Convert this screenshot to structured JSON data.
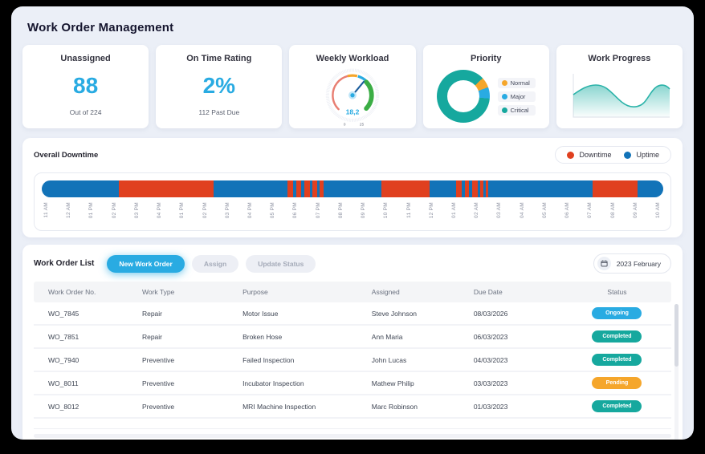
{
  "page": {
    "title": "Work Order Management"
  },
  "kpi_cards": [
    {
      "title": "Unassigned",
      "value": "88",
      "subtitle": "Out of 224",
      "accent_color": "#29ABE2"
    },
    {
      "title": "On Time Rating",
      "value": "2%",
      "subtitle": "112 Past Due",
      "accent_color": "#29ABE2"
    },
    {
      "title": "Weekly Workload",
      "gauge": {
        "value": "18,2",
        "min": "0",
        "max": "25"
      }
    },
    {
      "title": "Priority",
      "legend": [
        {
          "label": "Normal",
          "color": "#F5A62B"
        },
        {
          "label": "Major",
          "color": "#29ABE2"
        },
        {
          "label": "Critical",
          "color": "#16A89E"
        }
      ]
    },
    {
      "title": "Work Progress",
      "accent_color": "#2BB3A9"
    }
  ],
  "downtime": {
    "title": "Overall Downtime",
    "legend": [
      {
        "label": "Downtime",
        "color": "#E0401F"
      },
      {
        "label": "Uptime",
        "color": "#1273B8"
      }
    ],
    "timeline": {
      "labels": [
        "11 AM",
        "12 AM",
        "01 PM",
        "02 PM",
        "03 PM",
        "04 PM",
        "01 PM",
        "02 PM",
        "03 PM",
        "04 PM",
        "05 PM",
        "06 PM",
        "07 PM",
        "08 PM",
        "09 PM",
        "10 PM",
        "11 PM",
        "12 PM",
        "01 AM",
        "02 AM",
        "03 AM",
        "04 AM",
        "05 AM",
        "06 AM",
        "07 AM",
        "08 AM",
        "09 AM",
        "10 AM"
      ],
      "downtime_segments": [
        {
          "start": 12.4,
          "width": 15.2
        },
        {
          "start": 39.5,
          "width": 0.9
        },
        {
          "start": 41.0,
          "width": 0.7
        },
        {
          "start": 42.2,
          "width": 0.9
        },
        {
          "start": 43.6,
          "width": 0.7
        },
        {
          "start": 44.7,
          "width": 0.6
        },
        {
          "start": 54.7,
          "width": 7.7
        },
        {
          "start": 66.7,
          "width": 0.9
        },
        {
          "start": 68.1,
          "width": 0.6
        },
        {
          "start": 69.2,
          "width": 0.9
        },
        {
          "start": 70.5,
          "width": 0.6
        },
        {
          "start": 71.4,
          "width": 0.5
        },
        {
          "start": 88.6,
          "width": 7.3
        }
      ]
    }
  },
  "work_orders": {
    "title": "Work Order List",
    "buttons": {
      "new": "New Work Order",
      "assign": "Assign",
      "update": "Update Status"
    },
    "date_filter": "2023 February",
    "columns": [
      "Work Order No.",
      "Work Type",
      "Purpose",
      "Assigned",
      "Due Date",
      "Status"
    ],
    "rows": [
      {
        "no": "WO_7845",
        "type": "Repair",
        "purpose": "Motor Issue",
        "assigned": "Steve Johnson",
        "due": "08/03/2026",
        "status": "Ongoing"
      },
      {
        "no": "WO_7851",
        "type": "Repair",
        "purpose": "Broken Hose",
        "assigned": "Ann Maria",
        "due": "06/03/2023",
        "status": "Completed"
      },
      {
        "no": "WO_7940",
        "type": "Preventive",
        "purpose": "Failed Inspection",
        "assigned": "John Lucas",
        "due": "04/03/2023",
        "status": "Completed"
      },
      {
        "no": "WO_8011",
        "type": "Preventive",
        "purpose": "Incubator Inspection",
        "assigned": "Mathew Philip",
        "due": "03/03/2023",
        "status": "Pending"
      },
      {
        "no": "WO_8012",
        "type": "Preventive",
        "purpose": "MRI Machine Inspection",
        "assigned": "Marc Robinson",
        "due": "01/03/2023",
        "status": "Completed"
      }
    ],
    "status_colors": {
      "Ongoing": "#29ABE2",
      "Completed": "#16A89E",
      "Pending": "#F5A62B"
    }
  },
  "chart_data": [
    {
      "type": "gauge",
      "title": "Weekly Workload",
      "value": 18.2,
      "min": 0,
      "max": 25,
      "segments": [
        {
          "name": "low",
          "color": "#E87E72"
        },
        {
          "name": "mid",
          "color": "#F5A62B"
        },
        {
          "name": "current",
          "color": "#29ABE2"
        },
        {
          "name": "high",
          "color": "#3BAD45"
        }
      ]
    },
    {
      "type": "pie",
      "title": "Priority",
      "donut": true,
      "legend_position": "right",
      "labels": [
        "Normal",
        "Major",
        "Critical"
      ],
      "values": [
        6,
        7,
        87
      ],
      "colors": [
        "#F5A62B",
        "#29ABE2",
        "#16A89E"
      ]
    },
    {
      "type": "area",
      "title": "Work Progress",
      "color": "#2BB3A9",
      "x": [
        0,
        1,
        2,
        3,
        4,
        5,
        6,
        7,
        8
      ],
      "values": [
        50,
        68,
        72,
        60,
        35,
        22,
        35,
        72,
        62
      ]
    },
    {
      "type": "bar",
      "title": "Overall Downtime",
      "subtitle": "23-hour uptime/downtime timeline",
      "categories": [
        "11 AM",
        "12 AM",
        "01 PM",
        "02 PM",
        "03 PM",
        "04 PM",
        "01 PM",
        "02 PM",
        "03 PM",
        "04 PM",
        "05 PM",
        "06 PM",
        "07 PM",
        "08 PM",
        "09 PM",
        "10 PM",
        "11 PM",
        "12 PM",
        "01 AM",
        "02 AM",
        "03 AM",
        "04 AM",
        "05 AM",
        "06 AM",
        "07 AM",
        "08 AM",
        "09 AM",
        "10 AM"
      ],
      "series": [
        {
          "name": "Downtime",
          "color": "#E0401F"
        },
        {
          "name": "Uptime",
          "color": "#1273B8"
        }
      ]
    }
  ]
}
